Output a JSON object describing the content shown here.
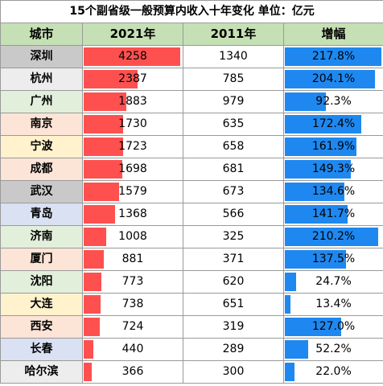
{
  "chart_data": {
    "type": "table",
    "title": "15个副省级一般预算内收入十年变化    单位：亿元",
    "columns": [
      "城市",
      "2021年",
      "2011年",
      "增幅"
    ],
    "rows": [
      {
        "city": "深圳",
        "y2021": 4258,
        "y2011": 1340,
        "growth": "217.8%",
        "growth_value": 217.8,
        "city_color": "#c9c9c9"
      },
      {
        "city": "杭州",
        "y2021": 2387,
        "y2011": 785,
        "growth": "204.1%",
        "growth_value": 204.1,
        "city_color": "#ededed"
      },
      {
        "city": "广州",
        "y2021": 1883,
        "y2011": 979,
        "growth": "92.3%",
        "growth_value": 92.3,
        "city_color": "#e2efda"
      },
      {
        "city": "南京",
        "y2021": 1730,
        "y2011": 635,
        "growth": "172.4%",
        "growth_value": 172.4,
        "city_color": "#fce4d6"
      },
      {
        "city": "宁波",
        "y2021": 1723,
        "y2011": 658,
        "growth": "161.9%",
        "growth_value": 161.9,
        "city_color": "#fff2cc"
      },
      {
        "city": "成都",
        "y2021": 1698,
        "y2011": 681,
        "growth": "149.3%",
        "growth_value": 149.3,
        "city_color": "#fce4d6"
      },
      {
        "city": "武汉",
        "y2021": 1579,
        "y2011": 673,
        "growth": "134.6%",
        "growth_value": 134.6,
        "city_color": "#c9c9c9"
      },
      {
        "city": "青岛",
        "y2021": 1368,
        "y2011": 566,
        "growth": "141.7%",
        "growth_value": 141.7,
        "city_color": "#d9e1f2"
      },
      {
        "city": "济南",
        "y2021": 1008,
        "y2011": 325,
        "growth": "210.2%",
        "growth_value": 210.2,
        "city_color": "#e2efda"
      },
      {
        "city": "厦门",
        "y2021": 881,
        "y2011": 371,
        "growth": "137.5%",
        "growth_value": 137.5,
        "city_color": "#fce4d6"
      },
      {
        "city": "沈阳",
        "y2021": 773,
        "y2011": 620,
        "growth": "24.7%",
        "growth_value": 24.7,
        "city_color": "#e2efda"
      },
      {
        "city": "大连",
        "y2021": 738,
        "y2011": 651,
        "growth": "13.4%",
        "growth_value": 13.4,
        "city_color": "#fff2cc"
      },
      {
        "city": "西安",
        "y2021": 724,
        "y2011": 319,
        "growth": "127.0%",
        "growth_value": 127.0,
        "city_color": "#fce4d6"
      },
      {
        "city": "长春",
        "y2021": 440,
        "y2011": 289,
        "growth": "52.2%",
        "growth_value": 52.2,
        "city_color": "#d9e1f2"
      },
      {
        "city": "哈尔滨",
        "y2021": 366,
        "y2011": 300,
        "growth": "22.0%",
        "growth_value": 22.0,
        "city_color": "#ededed"
      }
    ],
    "bar_max_2021": 4258,
    "bar_max_growth": 217.8,
    "colors": {
      "bar_2021": "#ff5050",
      "bar_growth": "#1e88f0",
      "header_bg": "#c5e0b4",
      "border": "#9a9a9a"
    }
  }
}
